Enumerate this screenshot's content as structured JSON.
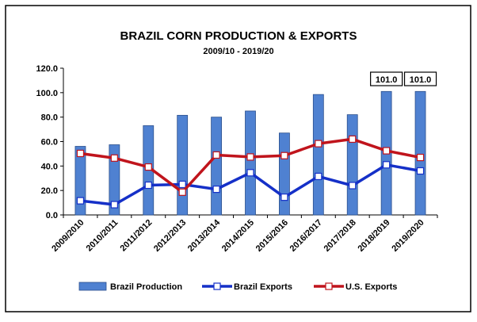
{
  "chart_data": {
    "type": "bar",
    "title": "BRAZIL CORN PRODUCTION & EXPORTS",
    "subtitle": "2009/10 - 2019/20",
    "categories": [
      "2009/2010",
      "2010/2011",
      "2011/2012",
      "2012/2013",
      "2013/2014",
      "2014/2015",
      "2015/2016",
      "2016/2017",
      "2017/2018",
      "2018/2019",
      "2019/2020"
    ],
    "ylim": [
      0,
      120
    ],
    "yticks": [
      "0.0",
      "20.0",
      "40.0",
      "60.0",
      "80.0",
      "100.0",
      "120.0"
    ],
    "series": [
      {
        "name": "Brazil Production",
        "kind": "bar",
        "color": "#4f81d1",
        "values": [
          56.1,
          57.4,
          73.0,
          81.5,
          80.0,
          85.0,
          67.0,
          98.5,
          82.0,
          101.0,
          101.0
        ]
      },
      {
        "name": "Brazil Exports",
        "kind": "line",
        "color": "#1530c8",
        "values": [
          11.6,
          8.4,
          24.3,
          25.0,
          21.0,
          34.5,
          14.5,
          31.5,
          24.0,
          41.0,
          36.0
        ]
      },
      {
        "name": "U.S. Exports",
        "kind": "line",
        "color": "#c0141c",
        "values": [
          50.3,
          46.5,
          39.2,
          18.6,
          49.0,
          47.4,
          48.5,
          58.3,
          62.0,
          52.5,
          47.0
        ]
      }
    ],
    "annotations": [
      {
        "category": "2018/2019",
        "text": "101.0"
      },
      {
        "category": "2019/2020",
        "text": "101.0"
      }
    ],
    "grid": false,
    "legend": "bottom"
  }
}
